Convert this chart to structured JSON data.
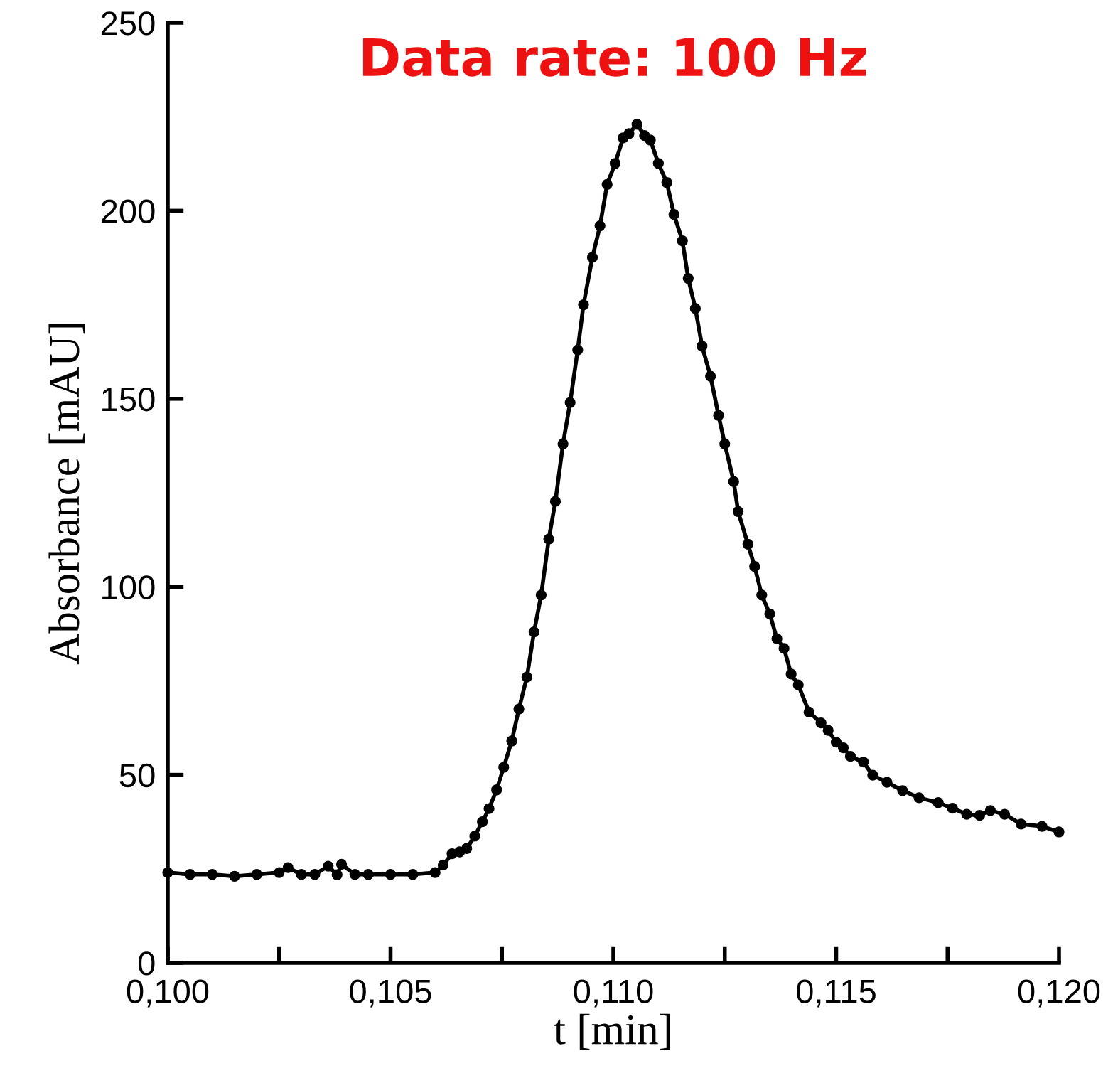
{
  "chart_data": {
    "type": "line",
    "title": "Data rate: 100 Hz",
    "xlabel": "t [min]",
    "ylabel": "Absorbance [mAU]",
    "xlim": [
      0.1,
      0.12
    ],
    "ylim": [
      0,
      250
    ],
    "xticks": [
      {
        "value": 0.1,
        "label": "0,100"
      },
      {
        "value": 0.1025,
        "label": null
      },
      {
        "value": 0.105,
        "label": "0,105"
      },
      {
        "value": 0.1075,
        "label": null
      },
      {
        "value": 0.11,
        "label": "0,110"
      },
      {
        "value": 0.1125,
        "label": null
      },
      {
        "value": 0.115,
        "label": "0,115"
      },
      {
        "value": 0.1175,
        "label": null
      },
      {
        "value": 0.12,
        "label": "0,120"
      }
    ],
    "yticks": [
      0,
      50,
      100,
      150,
      200,
      250
    ],
    "grid": false,
    "marker": "circle",
    "line_style": "solid",
    "series": [
      {
        "color": "#000000",
        "x": [
          0.1,
          0.1005,
          0.101,
          0.1015,
          0.102,
          0.1025,
          0.1027,
          0.103,
          0.1033,
          0.1036,
          0.1038,
          0.1039,
          0.1042,
          0.1045,
          0.105,
          0.1055,
          0.106,
          0.10618,
          0.10638,
          0.10655,
          0.10671,
          0.10689,
          0.10706,
          0.10721,
          0.10738,
          0.10754,
          0.10772,
          0.10788,
          0.10806,
          0.10822,
          0.10838,
          0.10855,
          0.1087,
          0.10887,
          0.10903,
          0.1092,
          0.10933,
          0.10953,
          0.1097,
          0.10986,
          0.11004,
          0.11022,
          0.11035,
          0.11053,
          0.1107,
          0.11083,
          0.11101,
          0.1112,
          0.11136,
          0.11155,
          0.11168,
          0.11184,
          0.11199,
          0.11218,
          0.11236,
          0.1125,
          0.1127,
          0.1128,
          0.11302,
          0.11317,
          0.11333,
          0.11351,
          0.11367,
          0.11383,
          0.11399,
          0.11415,
          0.11439,
          0.11466,
          0.11482,
          0.115,
          0.11516,
          0.11532,
          0.11561,
          0.11582,
          0.11614,
          0.11649,
          0.11686,
          0.11729,
          0.11761,
          0.11793,
          0.11822,
          0.11846,
          0.11878,
          0.11915,
          0.11962,
          0.12
        ],
        "values": [
          24,
          23.5,
          23.5,
          23,
          23.5,
          24,
          25.3,
          23.5,
          23.5,
          25.7,
          23.4,
          26.2,
          23.5,
          23.5,
          23.5,
          23.5,
          24,
          26,
          29,
          29.5,
          30.4,
          33.7,
          37.5,
          41,
          46,
          52,
          59,
          67.5,
          76,
          88,
          97.8,
          112.7,
          122.7,
          138,
          149,
          163,
          175,
          187.6,
          196,
          207,
          212.6,
          219.4,
          220.5,
          223,
          220,
          218.8,
          212.6,
          207.5,
          199,
          192,
          182,
          174,
          164,
          156,
          145.6,
          138,
          128,
          120,
          111.3,
          105.4,
          97.8,
          92.8,
          86.2,
          83.6,
          76.8,
          73.9,
          66.7,
          63.8,
          61.8,
          58.7,
          57.2,
          54.9,
          53.4,
          49.9,
          48,
          45.8,
          43.9,
          42.6,
          41.1,
          39.5,
          39.2,
          40.5,
          39.5,
          36.9,
          36.3,
          34.8
        ]
      }
    ]
  }
}
